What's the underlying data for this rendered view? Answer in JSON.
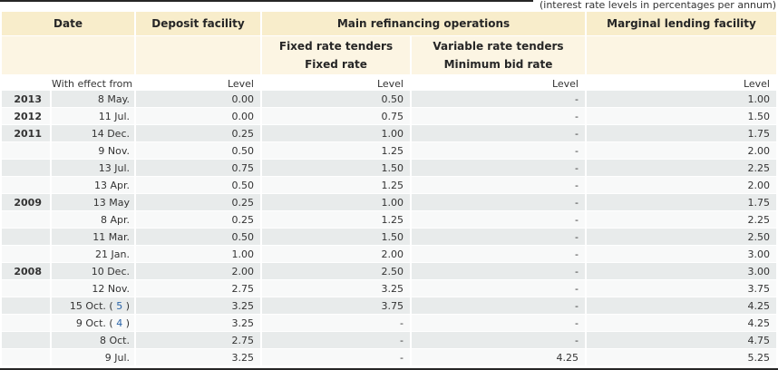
{
  "note": "(interest rate levels in percentages per annum)",
  "colors": {
    "band1": "#f8edcb",
    "band2": "#fcf5e3",
    "row-dark": "#e8ebeb",
    "row-light": "#f8f9f9",
    "link": "#2a64a8",
    "rule": "#262626"
  },
  "table": {
    "headers": {
      "date": "Date",
      "deposit_facility": "Deposit facility",
      "main_refinancing": "Main refinancing operations",
      "marginal_lending": "Marginal lending facility",
      "fixed_rate_tenders": "Fixed rate tenders",
      "fixed_rate": "Fixed rate",
      "variable_rate_tenders": "Variable rate tenders",
      "minimum_bid_rate": "Minimum bid rate",
      "with_effect_from": "With effect from",
      "level": "Level"
    },
    "rows": [
      {
        "year": "2013",
        "date": "8 May.",
        "deposit": "0.00",
        "fixed": "0.50",
        "variable": "-",
        "marginal": "1.00"
      },
      {
        "year": "2012",
        "date": "11 Jul.",
        "deposit": "0.00",
        "fixed": "0.75",
        "variable": "-",
        "marginal": "1.50"
      },
      {
        "year": "2011",
        "date": "14 Dec.",
        "deposit": "0.25",
        "fixed": "1.00",
        "variable": "-",
        "marginal": "1.75"
      },
      {
        "year": "",
        "date": "9 Nov.",
        "deposit": "0.50",
        "fixed": "1.25",
        "variable": "-",
        "marginal": "2.00"
      },
      {
        "year": "",
        "date": "13 Jul.",
        "deposit": "0.75",
        "fixed": "1.50",
        "variable": "-",
        "marginal": "2.25"
      },
      {
        "year": "",
        "date": "13 Apr.",
        "deposit": "0.50",
        "fixed": "1.25",
        "variable": "-",
        "marginal": "2.00"
      },
      {
        "year": "2009",
        "date": "13 May",
        "deposit": "0.25",
        "fixed": "1.00",
        "variable": "-",
        "marginal": "1.75"
      },
      {
        "year": "",
        "date": "8 Apr.",
        "deposit": "0.25",
        "fixed": "1.25",
        "variable": "-",
        "marginal": "2.25"
      },
      {
        "year": "",
        "date": "11 Mar.",
        "deposit": "0.50",
        "fixed": "1.50",
        "variable": "-",
        "marginal": "2.50"
      },
      {
        "year": "",
        "date": "21 Jan.",
        "deposit": "1.00",
        "fixed": "2.00",
        "variable": "-",
        "marginal": "3.00"
      },
      {
        "year": "2008",
        "date": "10 Dec.",
        "deposit": "2.00",
        "fixed": "2.50",
        "variable": "-",
        "marginal": "3.00"
      },
      {
        "year": "",
        "date": "12 Nov.",
        "deposit": "2.75",
        "fixed": "3.25",
        "variable": "-",
        "marginal": "3.75"
      },
      {
        "year": "",
        "date": "15 Oct.",
        "footnote": "5",
        "deposit": "3.25",
        "fixed": "3.75",
        "variable": "-",
        "marginal": "4.25"
      },
      {
        "year": "",
        "date": "9 Oct.",
        "footnote": "4",
        "deposit": "3.25",
        "fixed": "-",
        "variable": "-",
        "marginal": "4.25"
      },
      {
        "year": "",
        "date": "8 Oct.",
        "deposit": "2.75",
        "fixed": "-",
        "variable": "-",
        "marginal": "4.75"
      },
      {
        "year": "",
        "date": "9 Jul.",
        "deposit": "3.25",
        "fixed": "-",
        "variable": "4.25",
        "marginal": "5.25"
      }
    ]
  }
}
